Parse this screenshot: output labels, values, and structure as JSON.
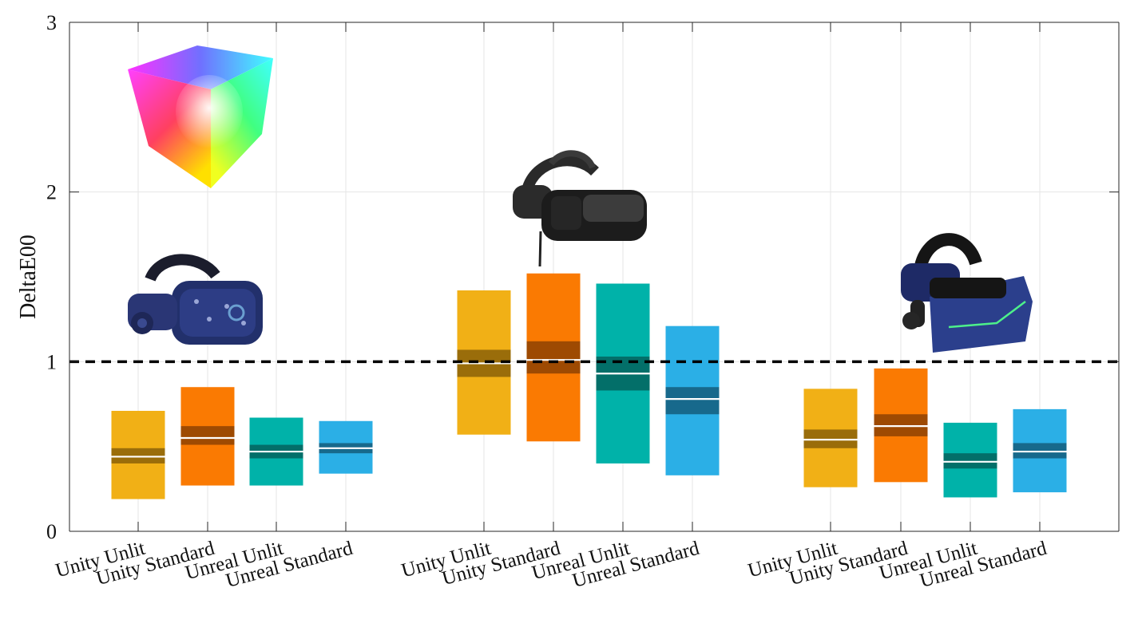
{
  "chart_data": {
    "type": "box",
    "ylabel": "DeltaE00",
    "ylim": [
      0,
      3
    ],
    "yticks": [
      "0",
      "1",
      "2",
      "3"
    ],
    "grid": true,
    "reference_line": 1,
    "categories": [
      "Unity Unlit",
      "Unity Standard",
      "Unreal Unlit",
      "Unreal Standard",
      "Unity Unlit",
      "Unity Standard",
      "Unreal Unlit",
      "Unreal Standard",
      "Unity Unlit",
      "Unity Standard",
      "Unreal Unlit",
      "Unreal Standard"
    ],
    "groups": [
      {
        "headset": "vive-pro-headset",
        "boxes": [
          {
            "label": "Unity Unlit",
            "color": "#F1B016",
            "dark": "#9A6D0A",
            "min": 0.19,
            "max": 0.71,
            "band_low": 0.4,
            "band_high": 0.49,
            "median": 0.44
          },
          {
            "label": "Unity Standard",
            "color": "#FA7A02",
            "dark": "#9E4A02",
            "min": 0.27,
            "max": 0.85,
            "band_low": 0.51,
            "band_high": 0.62,
            "median": 0.55
          },
          {
            "label": "Unreal Unlit",
            "color": "#00B2A9",
            "dark": "#036F69",
            "min": 0.27,
            "max": 0.67,
            "band_low": 0.43,
            "band_high": 0.51,
            "median": 0.47
          },
          {
            "label": "Unreal Standard",
            "color": "#2BAFE6",
            "dark": "#17698C",
            "min": 0.34,
            "max": 0.65,
            "band_low": 0.46,
            "band_high": 0.52,
            "median": 0.49
          }
        ]
      },
      {
        "headset": "varjo-headset",
        "boxes": [
          {
            "label": "Unity Unlit",
            "color": "#F1B016",
            "dark": "#9A6D0A",
            "min": 0.57,
            "max": 1.42,
            "band_low": 0.91,
            "band_high": 1.07,
            "median": 0.99
          },
          {
            "label": "Unity Standard",
            "color": "#FA7A02",
            "dark": "#9E4A02",
            "min": 0.53,
            "max": 1.52,
            "band_low": 0.93,
            "band_high": 1.12,
            "median": 1.01
          },
          {
            "label": "Unreal Unlit",
            "color": "#00B2A9",
            "dark": "#036F69",
            "min": 0.4,
            "max": 1.46,
            "band_low": 0.83,
            "band_high": 1.03,
            "median": 0.93
          },
          {
            "label": "Unreal Standard",
            "color": "#2BAFE6",
            "dark": "#17698C",
            "min": 0.33,
            "max": 1.21,
            "band_low": 0.69,
            "band_high": 0.85,
            "median": 0.78
          }
        ]
      },
      {
        "headset": "pimax-headset",
        "boxes": [
          {
            "label": "Unity Unlit",
            "color": "#F1B016",
            "dark": "#9A6D0A",
            "min": 0.26,
            "max": 0.84,
            "band_low": 0.49,
            "band_high": 0.6,
            "median": 0.54
          },
          {
            "label": "Unity Standard",
            "color": "#FA7A02",
            "dark": "#9E4A02",
            "min": 0.29,
            "max": 0.96,
            "band_low": 0.56,
            "band_high": 0.69,
            "median": 0.62
          },
          {
            "label": "Unreal Unlit",
            "color": "#00B2A9",
            "dark": "#036F69",
            "min": 0.2,
            "max": 0.64,
            "band_low": 0.37,
            "band_high": 0.46,
            "median": 0.41
          },
          {
            "label": "Unreal Standard",
            "color": "#2BAFE6",
            "dark": "#17698C",
            "min": 0.23,
            "max": 0.72,
            "band_low": 0.43,
            "band_high": 0.52,
            "median": 0.47
          }
        ]
      }
    ],
    "colors": {
      "axis": "#262626",
      "grid": "#E6E6E6",
      "reference_line": "#000000",
      "median_line": "#FFFFFF"
    }
  }
}
